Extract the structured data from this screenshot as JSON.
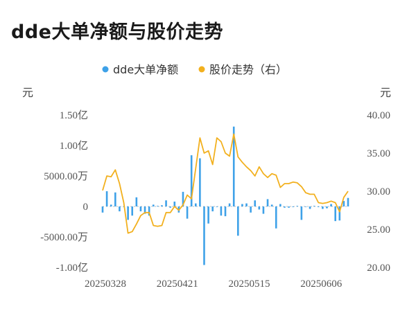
{
  "title": "dde大单净额与股价走势",
  "colors": {
    "bar": "#3ea1e8",
    "line": "#f2b01e"
  },
  "chart_data": {
    "type": "bar+line",
    "legend": [
      {
        "name": "dde大单净额",
        "marker": "dot",
        "color": "#3ea1e8"
      },
      {
        "name": "股价走势（右）",
        "marker": "dot",
        "color": "#f2b01e"
      }
    ],
    "left_unit": "元",
    "right_unit": "元",
    "left_ticks": [
      {
        "value": 15000,
        "label": "1.50亿"
      },
      {
        "value": 10000,
        "label": "1.00亿"
      },
      {
        "value": 5000,
        "label": "5000.00万"
      },
      {
        "value": 0,
        "label": "0"
      },
      {
        "value": -5000,
        "label": "-5000.00万"
      },
      {
        "value": -10000,
        "label": "-1.00亿"
      }
    ],
    "right_ticks": [
      {
        "value": 40,
        "label": "40.00"
      },
      {
        "value": 35,
        "label": "35.00"
      },
      {
        "value": 30,
        "label": "30.00"
      },
      {
        "value": 25,
        "label": "25.00"
      },
      {
        "value": 20,
        "label": "20.00"
      }
    ],
    "left_range": [
      -10000,
      15000
    ],
    "right_range": [
      20,
      40
    ],
    "x_labels": [
      {
        "index": 0,
        "label": "20250328"
      },
      {
        "index": 17,
        "label": "20250421"
      },
      {
        "index": 34,
        "label": "20250515"
      },
      {
        "index": 51,
        "label": "20250606"
      }
    ],
    "bars": [
      -1000,
      2500,
      300,
      2300,
      -800,
      0,
      -2200,
      -1500,
      1500,
      -800,
      -1200,
      -1500,
      300,
      100,
      200,
      1000,
      -200,
      800,
      -1000,
      2400,
      -2000,
      8400,
      500,
      7900,
      -9600,
      -2800,
      -800,
      0,
      -1500,
      -1600,
      500,
      13100,
      -4800,
      400,
      500,
      -1000,
      1000,
      -500,
      -1200,
      1200,
      300,
      -3600,
      400,
      -200,
      -200,
      -100,
      100,
      -2200,
      0,
      -400,
      100,
      -100,
      -400,
      -300,
      400,
      -2400,
      -2300,
      900,
      1400
    ],
    "price": [
      30.1,
      32.0,
      31.9,
      32.8,
      31.0,
      28.5,
      24.5,
      24.7,
      25.7,
      26.8,
      27.2,
      27.2,
      25.5,
      25.4,
      25.5,
      27.2,
      27.2,
      28.0,
      27.5,
      28.2,
      29.5,
      29.0,
      33.0,
      37.0,
      35.0,
      35.3,
      33.5,
      37.0,
      36.5,
      35.0,
      34.6,
      37.5,
      34.5,
      33.8,
      33.2,
      32.7,
      32.0,
      33.2,
      32.3,
      31.8,
      32.3,
      32.1,
      30.5,
      31.0,
      31.0,
      31.2,
      31.1,
      30.6,
      29.8,
      29.6,
      29.6,
      28.5,
      28.4,
      28.5,
      28.7,
      28.5,
      27.3,
      29.2,
      30.0
    ]
  }
}
